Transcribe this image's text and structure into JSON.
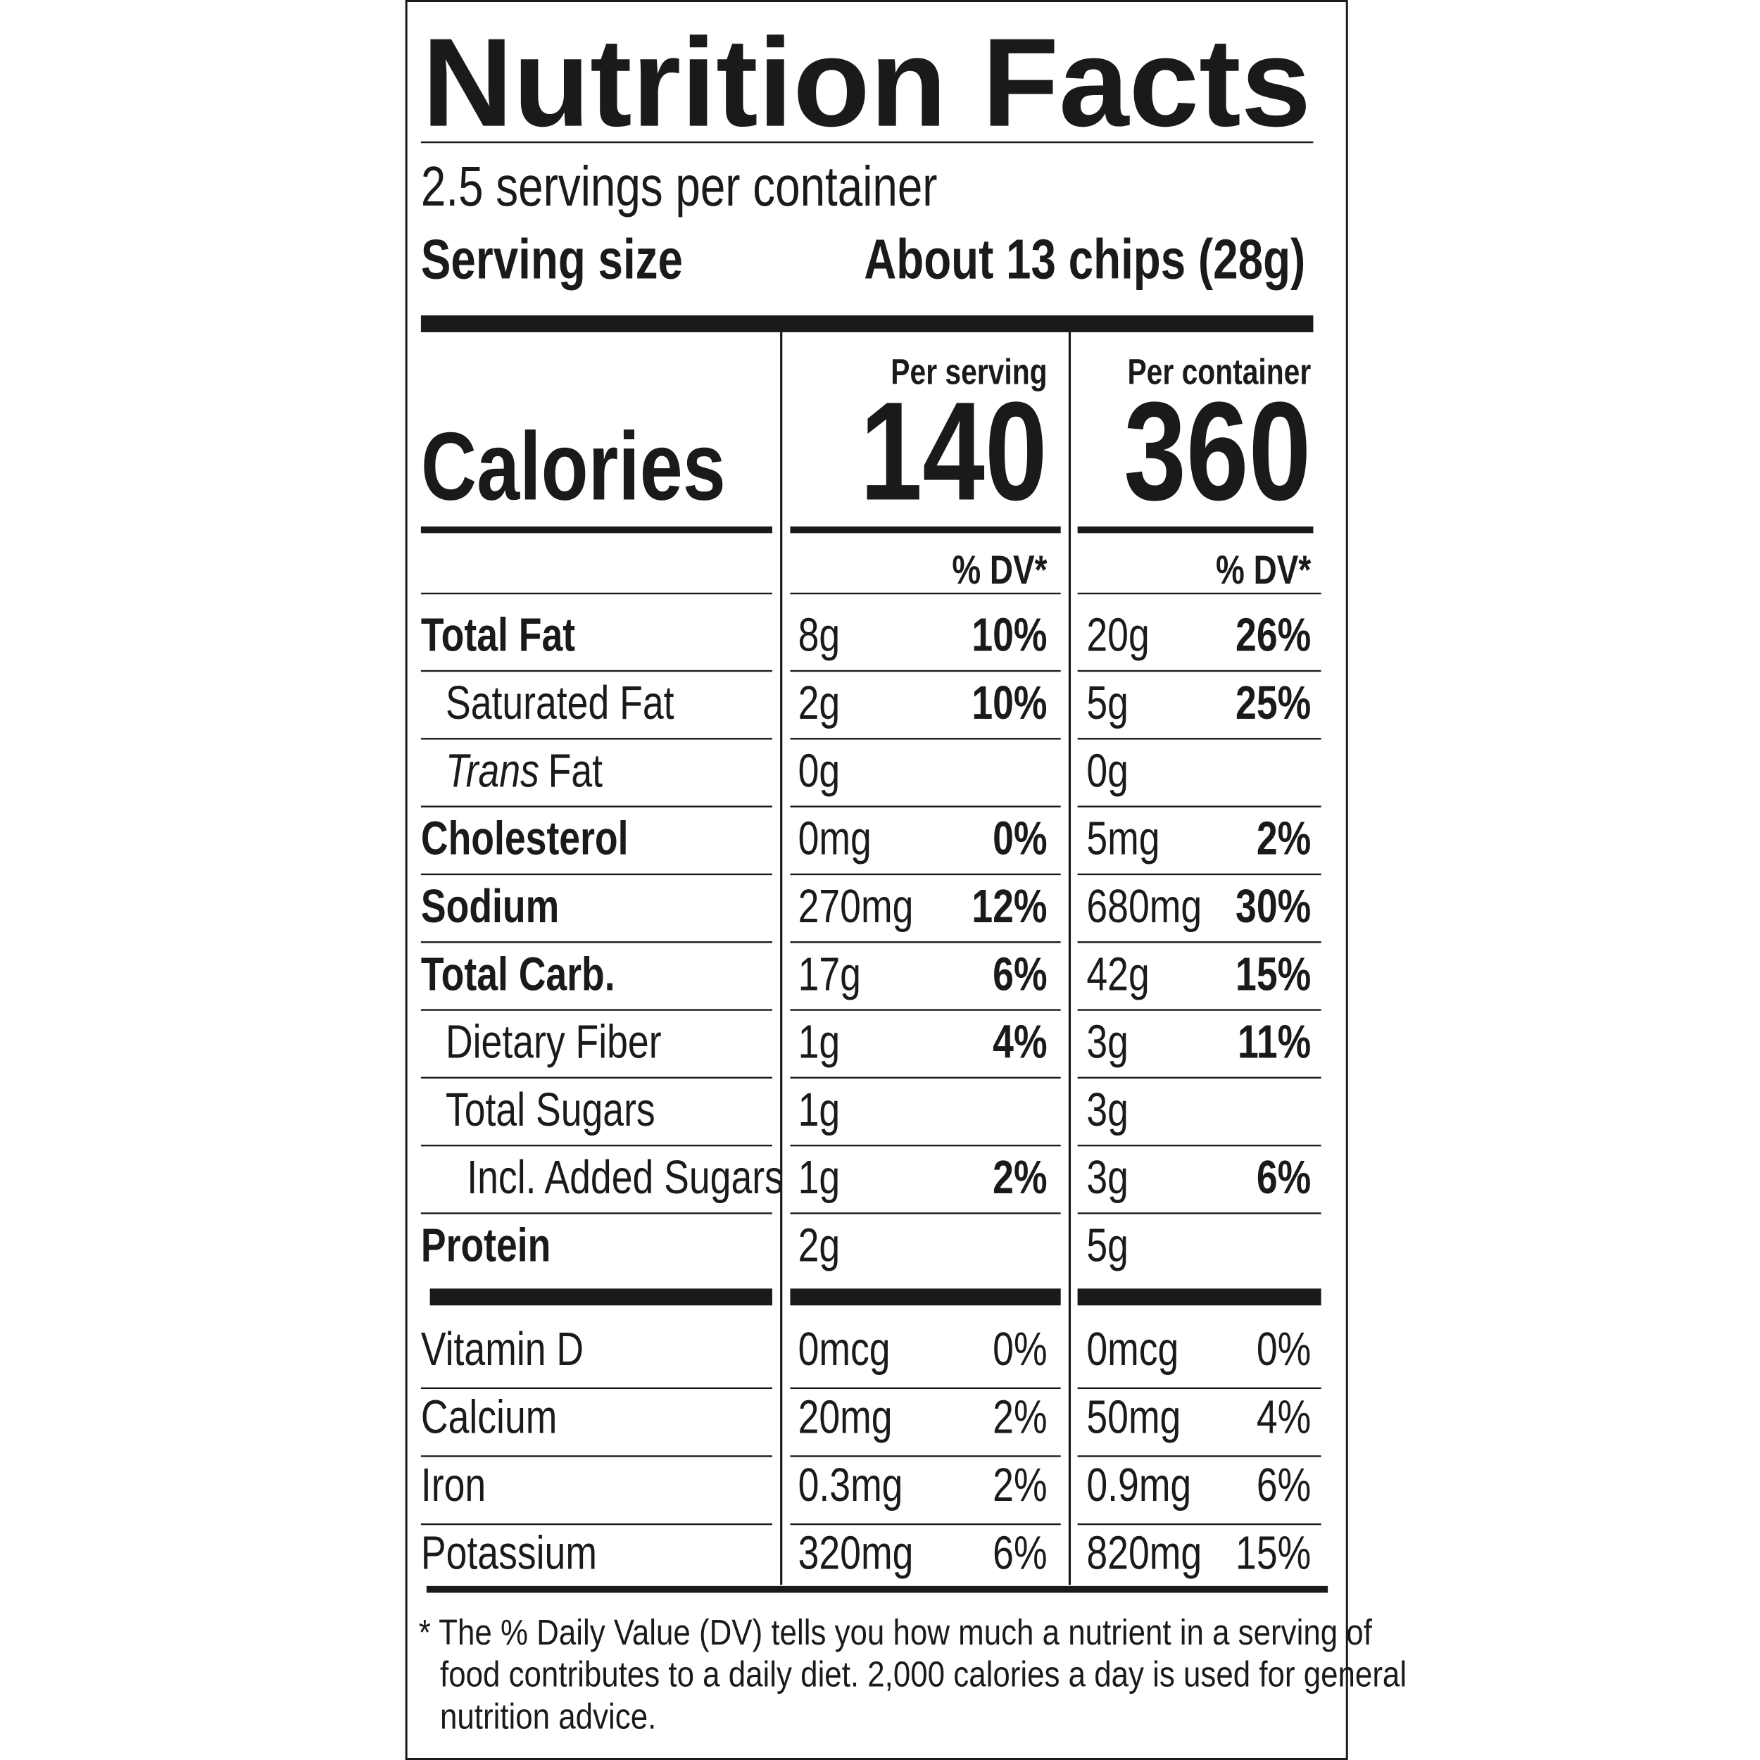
{
  "header": {
    "title": "Nutrition Facts",
    "servings": "2.5 servings per container",
    "serving_size_label": "Serving size",
    "serving_size_value": "About 13 chips (28g)"
  },
  "calories": {
    "label": "Calories",
    "per_serving_heading": "Per serving",
    "per_container_heading": "Per container",
    "per_serving": 140,
    "per_container": 360
  },
  "dv_heading": [
    "% DV*",
    "% DV*"
  ],
  "nutrients": [
    {
      "name": "Total Fat",
      "bold": true,
      "indent": 0,
      "serving_amount": "8g",
      "serving_dv": "10%",
      "container_amount": "20g",
      "container_dv": "26%"
    },
    {
      "name": "Saturated Fat",
      "bold": false,
      "indent": 1,
      "serving_amount": "2g",
      "serving_dv": "10%",
      "container_amount": "5g",
      "container_dv": "25%"
    },
    {
      "name_italic": "Trans",
      "name": "Fat",
      "bold": false,
      "indent": 1,
      "serving_amount": "0g",
      "container_amount": "0g"
    },
    {
      "name": "Cholesterol",
      "bold": true,
      "indent": 0,
      "serving_amount": "0mg",
      "serving_dv": "0%",
      "container_amount": "5mg",
      "container_dv": "2%"
    },
    {
      "name": "Sodium",
      "bold": true,
      "indent": 0,
      "serving_amount": "270mg",
      "serving_dv": "12%",
      "container_amount": "680mg",
      "container_dv": "30%"
    },
    {
      "name": "Total Carb.",
      "bold": true,
      "indent": 0,
      "serving_amount": "17g",
      "serving_dv": "6%",
      "container_amount": "42g",
      "container_dv": "15%"
    },
    {
      "name": "Dietary Fiber",
      "bold": false,
      "indent": 1,
      "serving_amount": "1g",
      "serving_dv": "4%",
      "container_amount": "3g",
      "container_dv": "11%"
    },
    {
      "name": "Total Sugars",
      "bold": false,
      "indent": 1,
      "serving_amount": "1g",
      "container_amount": "3g"
    },
    {
      "name": "Incl. Added Sugars",
      "bold": false,
      "indent": 2,
      "serving_amount": "1g",
      "serving_dv": "2%",
      "container_amount": "3g",
      "container_dv": "6%"
    },
    {
      "name": "Protein",
      "bold": true,
      "indent": 0,
      "serving_amount": "2g",
      "container_amount": "5g"
    }
  ],
  "vitamins": [
    {
      "name": "Vitamin D",
      "serving_amount": "0mcg",
      "serving_dv": "0%",
      "container_amount": "0mcg",
      "container_dv": "0%"
    },
    {
      "name": "Calcium",
      "serving_amount": "20mg",
      "serving_dv": "2%",
      "container_amount": "50mg",
      "container_dv": "4%"
    },
    {
      "name": "Iron",
      "serving_amount": "0.3mg",
      "serving_dv": "2%",
      "container_amount": "0.9mg",
      "container_dv": "6%"
    },
    {
      "name": "Potassium",
      "serving_amount": "320mg",
      "serving_dv": "6%",
      "container_amount": "820mg",
      "container_dv": "15%"
    }
  ],
  "footnote": [
    "* The % Daily Value (DV) tells you how much a nutrient in a serving of",
    "food contributes to a daily diet. 2,000 calories a day is used for general",
    "nutrition advice."
  ]
}
